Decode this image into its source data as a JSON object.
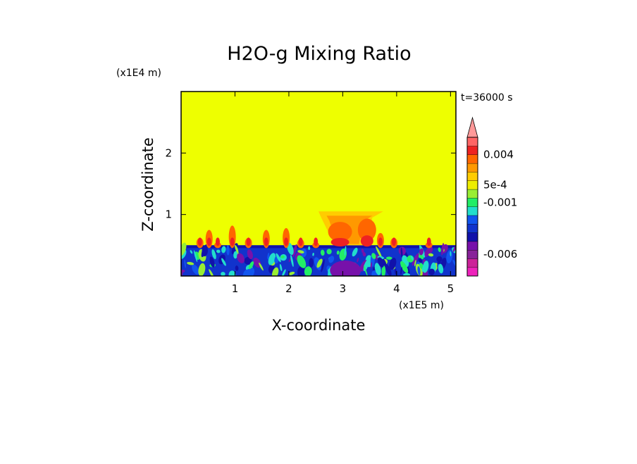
{
  "chart_data": {
    "type": "heatmap",
    "title": "H2O-g Mixing Ratio",
    "xlabel": "X-coordinate",
    "ylabel": "Z-coordinate",
    "x_scale_label": "(x1E5 m)",
    "y_scale_label": "(x1E4 m)",
    "time_label": "t=36000 s",
    "x_range": [
      0,
      5.1
    ],
    "y_range": [
      0,
      3
    ],
    "x_ticks": [
      "1",
      "2",
      "3",
      "4",
      "5"
    ],
    "x_tick_values": [
      1,
      2,
      3,
      4,
      5
    ],
    "y_ticks": [
      "1",
      "2"
    ],
    "y_tick_values": [
      1,
      2
    ],
    "colorbar": {
      "colors": [
        "#ee22bb",
        "#cc2299",
        "#882299",
        "#7711aa",
        "#1111aa",
        "#1133cc",
        "#1155ee",
        "#22ddcc",
        "#22ee66",
        "#99ee33",
        "#eeee00",
        "#ffcc00",
        "#ff9900",
        "#ff6600",
        "#ee2222",
        "#ff6666",
        "#ff9999"
      ],
      "labels": [
        "0.004",
        "5e-4",
        "-0.001",
        "-0.006"
      ],
      "label_levels": [
        14,
        10.5,
        8.5,
        2.5
      ]
    },
    "background_color": "#eeff00"
  }
}
